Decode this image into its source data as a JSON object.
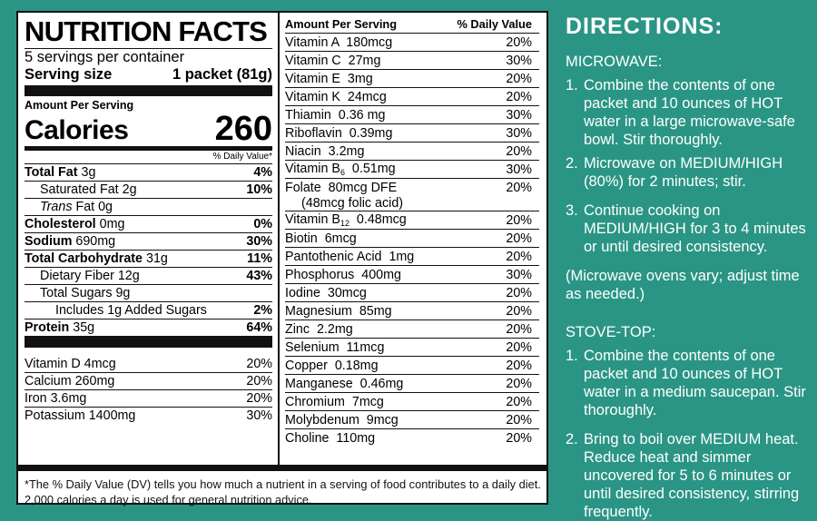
{
  "label": {
    "title": "NUTRITION FACTS",
    "servings_per_container": "5 servings per container",
    "serving_size_label": "Serving size",
    "serving_size_value": "1 packet (81g)",
    "amount_per_serving": "Amount Per Serving",
    "calories_label": "Calories",
    "calories_value": "260",
    "dv_header": "% Daily Value*",
    "nutrients": [
      {
        "name": "Total Fat",
        "amount": "3g",
        "dv": "4%"
      },
      {
        "name": "Saturated Fat",
        "amount": "2g",
        "dv": "10%"
      },
      {
        "name": "Trans",
        "amount": "Fat 0g",
        "dv": ""
      },
      {
        "name": "Cholesterol",
        "amount": "0mg",
        "dv": "0%"
      },
      {
        "name": "Sodium",
        "amount": "690mg",
        "dv": "30%"
      },
      {
        "name": "Total Carbohydrate",
        "amount": "31g",
        "dv": "11%"
      },
      {
        "name": "Dietary Fiber",
        "amount": "12g",
        "dv": "43%"
      },
      {
        "name": "Total Sugars",
        "amount": "9g",
        "dv": ""
      },
      {
        "name": "Includes 1g Added Sugars",
        "amount": "",
        "dv": "2%"
      },
      {
        "name": "Protein",
        "amount": "35g",
        "dv": "64%"
      }
    ],
    "minerals": [
      {
        "name": "Vitamin D 4mcg",
        "dv": "20%"
      },
      {
        "name": "Calcium 260mg",
        "dv": "20%"
      },
      {
        "name": "Iron 3.6mg",
        "dv": "20%"
      },
      {
        "name": "Potassium 1400mg",
        "dv": "30%"
      }
    ],
    "right_header_left": "Amount Per Serving",
    "right_header_right": "% Daily Value",
    "vitamins": [
      {
        "name": "Vitamin A  180mcg",
        "dv": "20%"
      },
      {
        "name": "Vitamin C  27mg",
        "dv": "30%"
      },
      {
        "name": "Vitamin E  3mg",
        "dv": "20%"
      },
      {
        "name": "Vitamin K  24mcg",
        "dv": "20%"
      },
      {
        "name": "Thiamin  0.36 mg",
        "dv": "30%"
      },
      {
        "name": "Riboflavin  0.39mg",
        "dv": "30%"
      },
      {
        "name": "Niacin  3.2mg",
        "dv": "20%"
      },
      {
        "name": "Vitamin B",
        "sub": "6",
        "rest": "  0.51mg",
        "dv": "30%"
      },
      {
        "name": "Folate  80mcg DFE",
        "line2": "(48mcg folic acid)",
        "dv": "20%"
      },
      {
        "name": "Vitamin B",
        "sub": "12",
        "rest": "  0.48mcg",
        "dv": "20%"
      },
      {
        "name": "Biotin  6mcg",
        "dv": "20%"
      },
      {
        "name": "Pantothenic Acid  1mg",
        "dv": "20%"
      },
      {
        "name": "Phosphorus  400mg",
        "dv": "30%"
      },
      {
        "name": "Iodine  30mcg",
        "dv": "20%"
      },
      {
        "name": "Magnesium  85mg",
        "dv": "20%"
      },
      {
        "name": "Zinc  2.2mg",
        "dv": "20%"
      },
      {
        "name": "Selenium  11mcg",
        "dv": "20%"
      },
      {
        "name": "Copper  0.18mg",
        "dv": "20%"
      },
      {
        "name": "Manganese  0.46mg",
        "dv": "20%"
      },
      {
        "name": "Chromium  7mcg",
        "dv": "20%"
      },
      {
        "name": "Molybdenum  9mcg",
        "dv": "20%"
      },
      {
        "name": "Choline  110mg",
        "dv": "20%"
      }
    ],
    "footnote": "*The % Daily Value (DV) tells you how much a nutrient in a serving of food contributes to a daily diet. 2,000 calories a day is used for general nutrition advice."
  },
  "directions": {
    "title": "DIRECTIONS:",
    "microwave_heading": "MICROWAVE:",
    "microwave_steps": [
      "Combine the contents of one packet and 10 ounces of HOT water in a large microwave-safe bowl. Stir thoroughly.",
      "Microwave on MEDIUM/HIGH (80%) for 2 minutes; stir.",
      "Continue cooking on MEDIUM/HIGH  for 3 to 4 minutes or until desired consistency."
    ],
    "microwave_note": "(Microwave ovens vary; adjust time as needed.)",
    "stove_heading": "STOVE-TOP:",
    "stove_steps": [
      "Combine the contents of one packet and 10 ounces of HOT water in a medium saucepan. Stir thoroughly.",
      "Bring to boil over MEDIUM heat. Reduce heat and simmer uncovered for 5 to 6 minutes or until desired consistency, stirring frequently."
    ]
  },
  "colors": {
    "background": "#2a9585",
    "label": "#ffffff",
    "ink": "#111111"
  }
}
